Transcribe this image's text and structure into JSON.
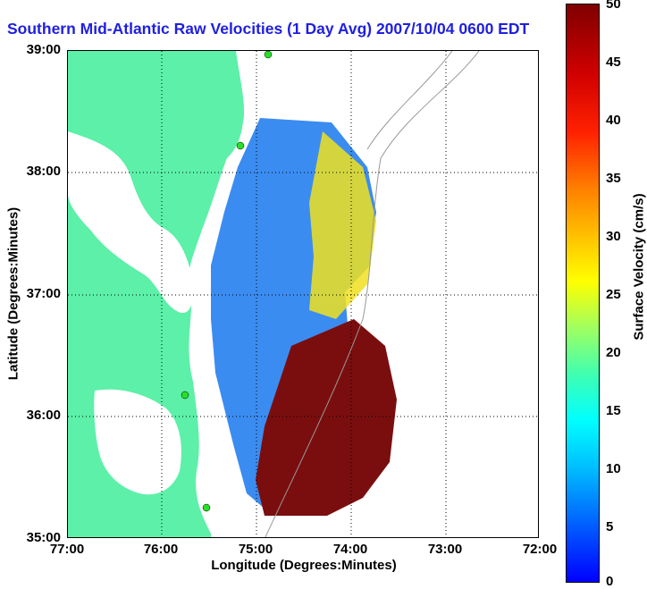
{
  "title": "Southern Mid-Atlantic Raw Velocities (1 Day Avg) 2007/10/04 0600 EDT",
  "axes": {
    "xlabel": "Longitude (Degrees:Minutes)",
    "ylabel": "Latitude (Degrees:Minutes)",
    "xticks": [
      "77:00",
      "76:00",
      "75:00",
      "74:00",
      "73:00",
      "72:00"
    ],
    "yticks": [
      "39:00",
      "38:00",
      "37:00",
      "36:00",
      "35:00"
    ]
  },
  "colorbar": {
    "label": "Surface Velocity (cm/s)",
    "ticks": [
      "50",
      "45",
      "40",
      "35",
      "30",
      "25",
      "20",
      "15",
      "10",
      "5",
      "0"
    ],
    "min": 0,
    "max": 50
  },
  "colors": {
    "land": "#5cf0a8",
    "title": "#1f1fe0",
    "low_speed": "#3b8cf0",
    "mid_speed": "#f0e020",
    "high_speed": "#7a0e0e",
    "stations": "#28e028"
  }
}
